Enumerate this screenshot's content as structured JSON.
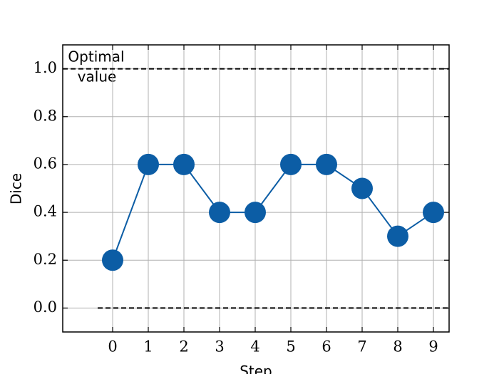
{
  "chart_data": {
    "type": "line",
    "x_label": "Step",
    "y_label": "Dice",
    "x": [
      0,
      1,
      2,
      3,
      4,
      5,
      6,
      7,
      8,
      9
    ],
    "series": [
      {
        "name": "Dice",
        "color": "#0C5DA5",
        "values": [
          0.2,
          0.6,
          0.6,
          0.4,
          0.4,
          0.6,
          0.6,
          0.5,
          0.3,
          0.4
        ]
      }
    ],
    "xlim": [
      -1.4,
      9.44
    ],
    "ylim": [
      -0.1,
      1.1
    ],
    "xticks": [
      0,
      1,
      2,
      3,
      4,
      5,
      6,
      7,
      8,
      9
    ],
    "yticks": [
      {
        "value": 0,
        "label": "0.0"
      },
      0.2,
      0.4,
      0.6,
      0.8,
      {
        "value": 1,
        "label": "1.0"
      }
    ],
    "reference_lines": [
      {
        "y": 1,
        "xmin": -1.4
      },
      {
        "y": 0,
        "xmin": -0.42
      }
    ],
    "annotation": [
      "Optimal",
      "value"
    ],
    "grid": true
  }
}
